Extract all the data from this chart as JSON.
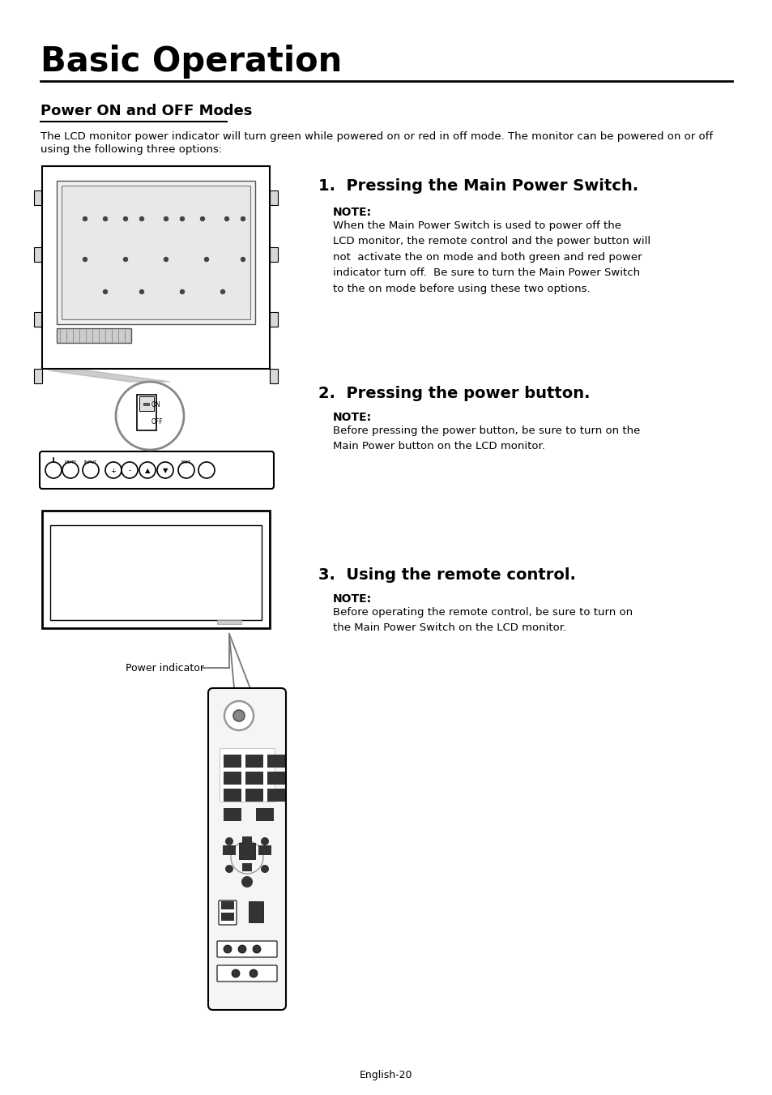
{
  "page_title": "Basic Operation",
  "section_title": "Power ON and OFF Modes",
  "section_intro_1": "The LCD monitor power indicator will turn green while powered on or red in off mode. The monitor can be powered on or off",
  "section_intro_2": "using the following three options:",
  "step1_title": "1.  Pressing the Main Power Switch.",
  "step1_note_label": "NOTE:",
  "step1_note_text": "When the Main Power Switch is used to power off the\nLCD monitor, the remote control and the power button will\nnot  activate the on mode and both green and red power\nindicator turn off.  Be sure to turn the Main Power Switch\nto the on mode before using these two options.",
  "step2_title": "2.  Pressing the power button.",
  "step2_note_label": "NOTE:",
  "step2_note_text": "Before pressing the power button, be sure to turn on the\nMain Power button on the LCD monitor.",
  "step3_title": "3.  Using the remote control.",
  "step3_note_label": "NOTE:",
  "step3_note_text": "Before operating the remote control, be sure to turn on\nthe Main Power Switch on the LCD monitor.",
  "power_indicator_label": "Power indicator",
  "footer": "English-20",
  "bg_color": "#ffffff",
  "text_color": "#000000",
  "line_color": "#000000"
}
